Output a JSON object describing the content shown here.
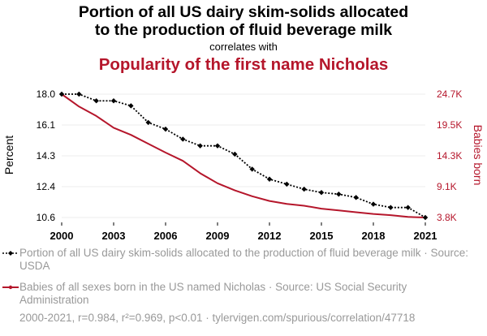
{
  "title_line1": "Portion of all US dairy skim-solids allocated",
  "title_line2": "to the production of fluid beverage milk",
  "correlates_with": "correlates with",
  "title_secondary": "Popularity of the first name Nicholas",
  "colors": {
    "primary": "#000000",
    "secondary": "#b5162b",
    "grid": "#eeeeee",
    "legend_text": "#999999"
  },
  "legend": {
    "series1": "Portion of all US dairy skim-solids allocated to the production of fluid beverage milk · Source: USDA",
    "series2": "Babies of all sexes born in the US named Nicholas · Source: US Social Security Administration"
  },
  "footer": "2000-2021, r=0.984, r²=0.969, p<0.01 · tylervigen.com/spurious/correlation/47718",
  "chart_data": {
    "type": "line",
    "x": [
      2000,
      2001,
      2002,
      2003,
      2004,
      2005,
      2006,
      2007,
      2008,
      2009,
      2010,
      2011,
      2012,
      2013,
      2014,
      2015,
      2016,
      2017,
      2018,
      2019,
      2020,
      2021
    ],
    "xlabel": "",
    "x_ticks": [
      "2000",
      "2003",
      "2006",
      "2009",
      "2012",
      "2015",
      "2018",
      "2021"
    ],
    "y_left": {
      "label": "Percent",
      "range": [
        10.6,
        18.0
      ],
      "ticks": [
        "18.0",
        "16.1",
        "14.3",
        "12.4",
        "10.6"
      ]
    },
    "y_right": {
      "label": "Babies born",
      "range": [
        3.8,
        24.7
      ],
      "ticks": [
        "24.7K",
        "19.5K",
        "14.3K",
        "9.1K",
        "3.8K"
      ]
    },
    "series": [
      {
        "name": "Portion of all US dairy skim-solids allocated to the production of fluid beverage milk",
        "axis": "left",
        "style": "dotted",
        "marker": "diamond",
        "values": [
          18.0,
          18.0,
          17.6,
          17.6,
          17.3,
          16.3,
          15.9,
          15.3,
          14.9,
          14.9,
          14.4,
          13.5,
          12.9,
          12.6,
          12.3,
          12.1,
          12.0,
          11.8,
          11.4,
          11.2,
          11.2,
          10.6
        ]
      },
      {
        "name": "Babies of all sexes born in the US named Nicholas",
        "axis": "right",
        "style": "solid",
        "marker": "none",
        "values": [
          24.7,
          22.6,
          21.0,
          19.0,
          17.8,
          16.3,
          14.8,
          13.4,
          11.3,
          9.6,
          8.4,
          7.4,
          6.6,
          6.1,
          5.8,
          5.3,
          5.0,
          4.7,
          4.4,
          4.2,
          3.9,
          3.8
        ]
      }
    ]
  }
}
